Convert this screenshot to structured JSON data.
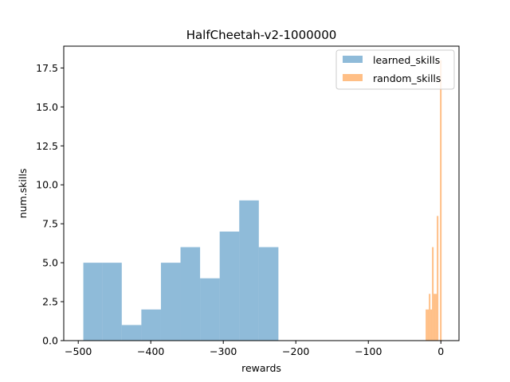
{
  "chart_data": {
    "type": "histogram",
    "title": "HalfCheetah-v2-1000000",
    "xlabel": "rewards",
    "ylabel": "num.skills",
    "xlim": [
      -520,
      25
    ],
    "ylim": [
      0,
      18.9
    ],
    "xticks": [
      -500,
      -400,
      -300,
      -200,
      -100,
      0
    ],
    "xtick_labels": [
      "−500",
      "−400",
      "−300",
      "−200",
      "−100",
      "0"
    ],
    "yticks": [
      0,
      2.5,
      5,
      7.5,
      10,
      12.5,
      15,
      17.5
    ],
    "ytick_labels": [
      "0.0",
      "2.5",
      "5.0",
      "7.5",
      "10.0",
      "12.5",
      "15.0",
      "17.5"
    ],
    "grid": false,
    "legend_position": "top-right",
    "series": [
      {
        "name": "learned_skills",
        "color": "#1f77b4",
        "alpha": 0.5,
        "bins": [
          {
            "x0": -493,
            "x1": -467,
            "count": 5
          },
          {
            "x0": -467,
            "x1": -440,
            "count": 5
          },
          {
            "x0": -440,
            "x1": -413,
            "count": 1
          },
          {
            "x0": -413,
            "x1": -386,
            "count": 2
          },
          {
            "x0": -386,
            "x1": -359,
            "count": 5
          },
          {
            "x0": -359,
            "x1": -332,
            "count": 6
          },
          {
            "x0": -332,
            "x1": -305,
            "count": 4
          },
          {
            "x0": -305,
            "x1": -278,
            "count": 7
          },
          {
            "x0": -278,
            "x1": -251,
            "count": 9
          },
          {
            "x0": -251,
            "x1": -224,
            "count": 6
          }
        ]
      },
      {
        "name": "random_skills",
        "color": "#ff7f0e",
        "alpha": 0.5,
        "bins": [
          {
            "x0": -21,
            "x1": -18.8,
            "count": 2
          },
          {
            "x0": -18.8,
            "x1": -16.6,
            "count": 2
          },
          {
            "x0": -16.6,
            "x1": -14.4,
            "count": 3
          },
          {
            "x0": -14.4,
            "x1": -12.2,
            "count": 2
          },
          {
            "x0": -12.2,
            "x1": -10.0,
            "count": 6
          },
          {
            "x0": -10.0,
            "x1": -7.8,
            "count": 3
          },
          {
            "x0": -7.8,
            "x1": -5.6,
            "count": 3
          },
          {
            "x0": -5.6,
            "x1": -3.4,
            "count": 8
          },
          {
            "x0": -3.4,
            "x1": -1.2,
            "count": 0
          },
          {
            "x0": -1.2,
            "x1": 1.0,
            "count": 18
          }
        ]
      }
    ]
  }
}
